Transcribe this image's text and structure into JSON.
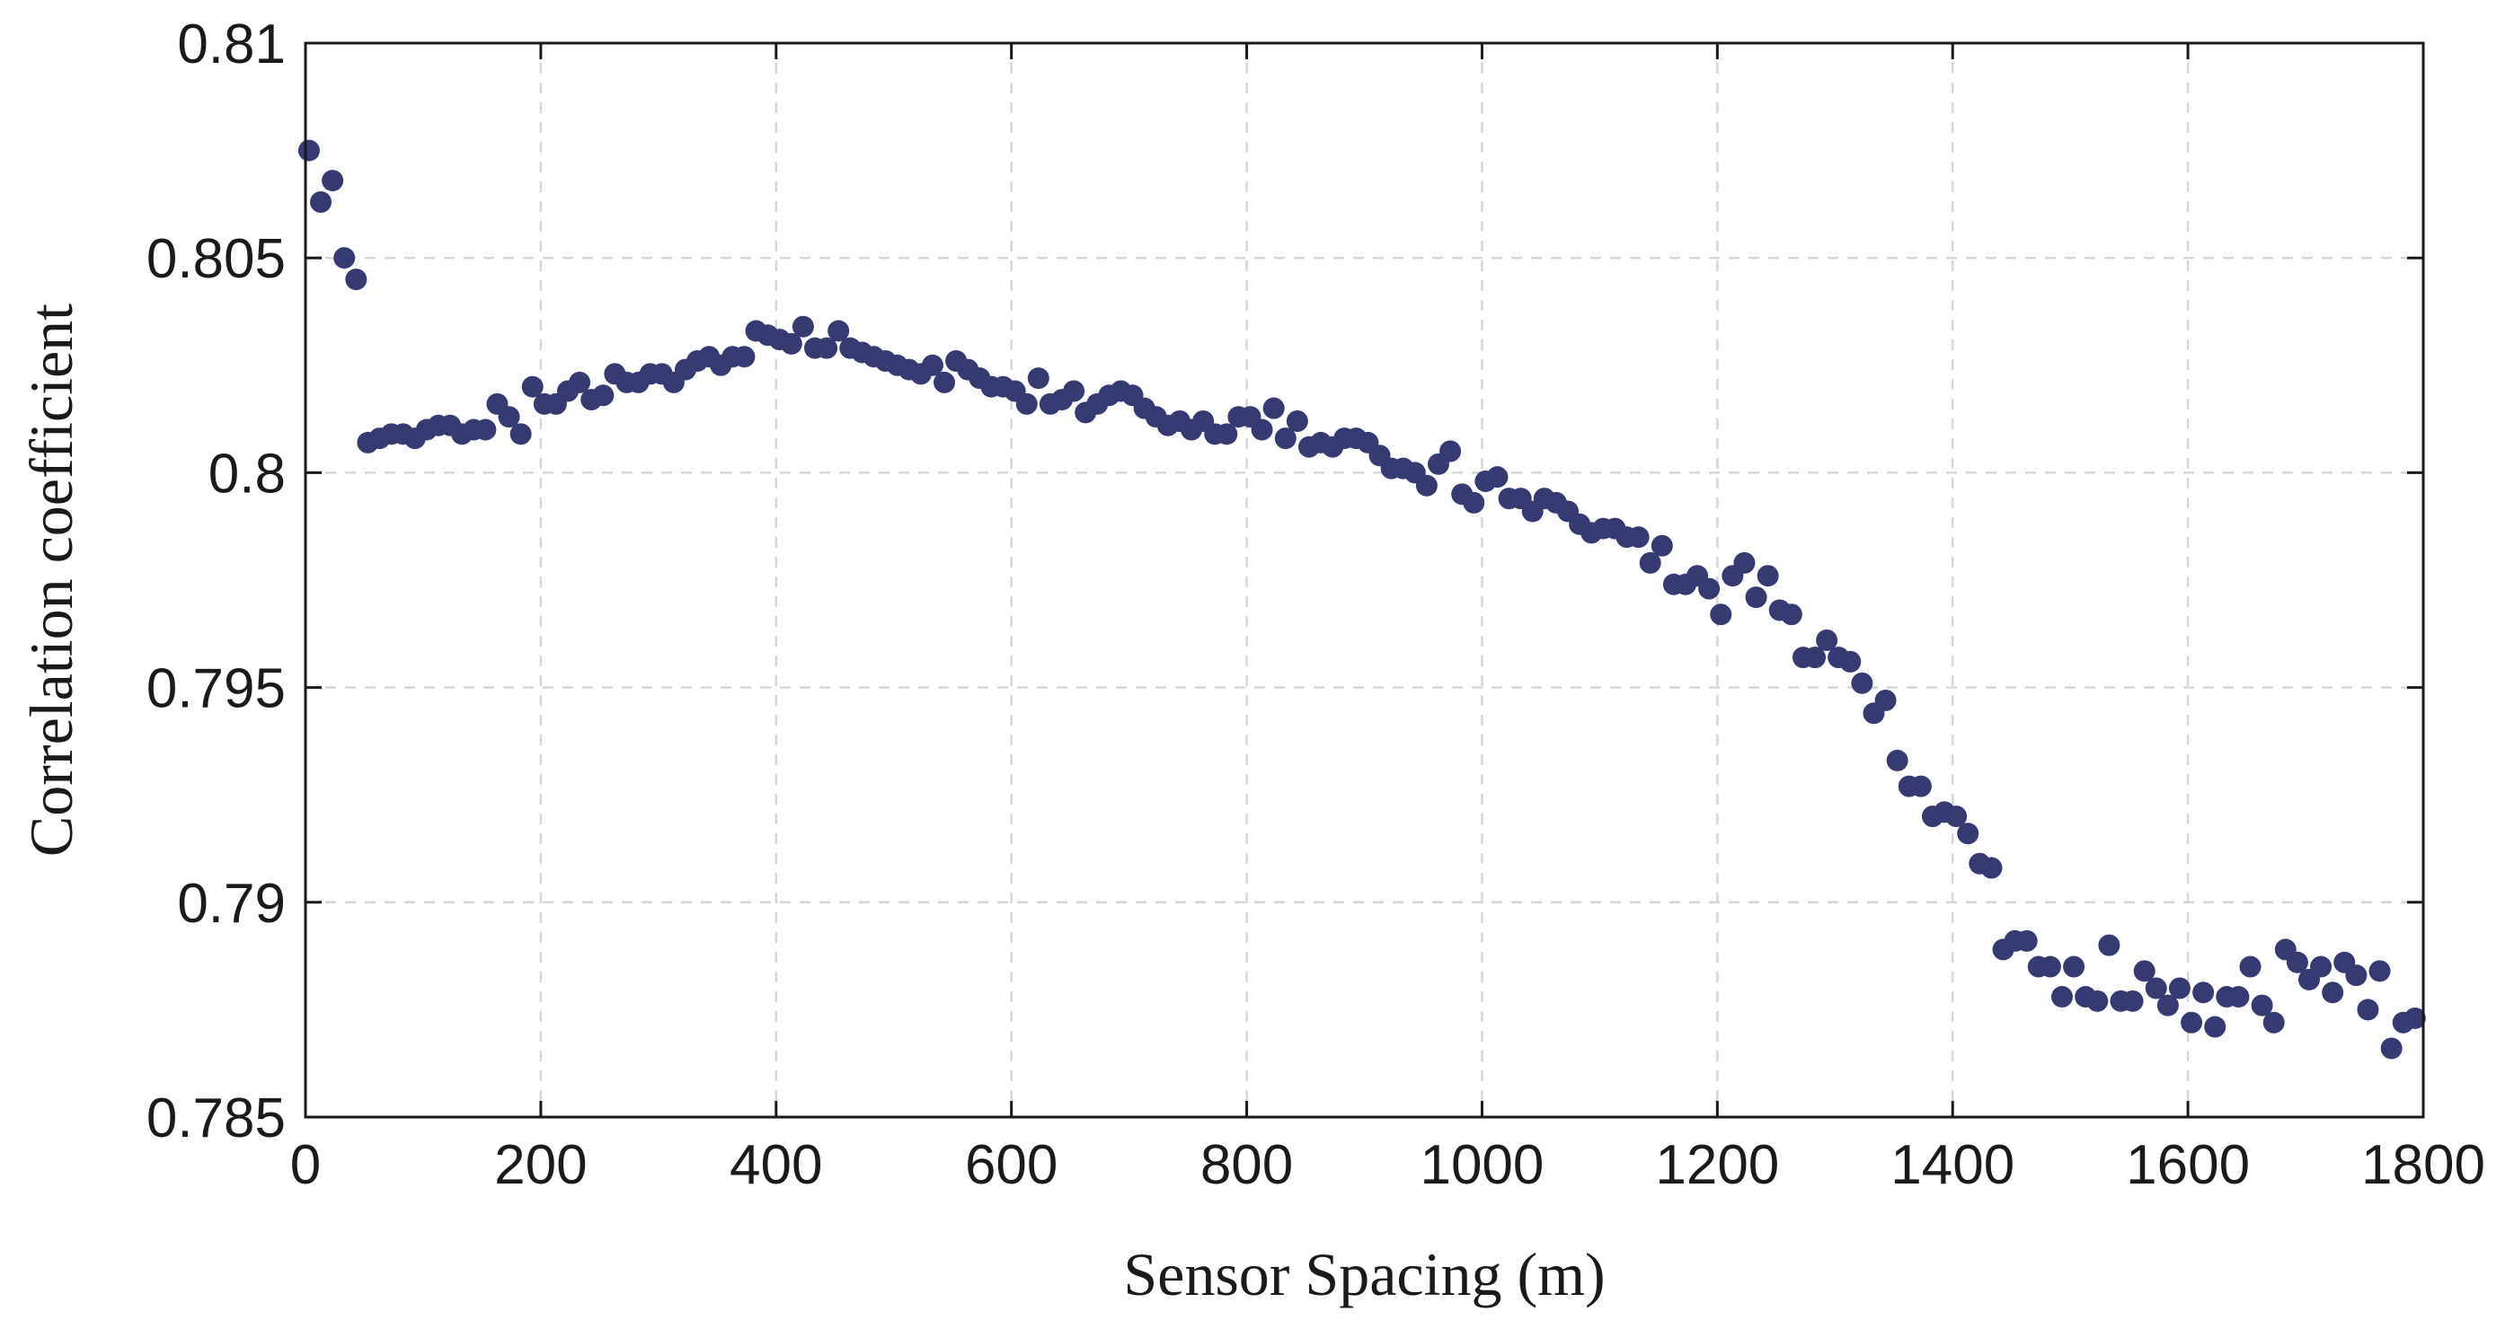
{
  "chart_data": {
    "type": "scatter",
    "title": "",
    "xlabel": "Sensor Spacing (m)",
    "ylabel": "Correlation coefficient",
    "xlim": [
      0,
      1800
    ],
    "ylim": [
      0.785,
      0.81
    ],
    "xticks": [
      0,
      200,
      400,
      600,
      800,
      1000,
      1200,
      1400,
      1600,
      1800
    ],
    "xtick_labels": [
      "0",
      "200",
      "400",
      "600",
      "800",
      "1000",
      "1200",
      "1400",
      "1600",
      "1800"
    ],
    "yticks": [
      0.785,
      0.79,
      0.795,
      0.8,
      0.805,
      0.81
    ],
    "ytick_labels": [
      "0.785",
      "0.79",
      "0.795",
      "0.8",
      "0.805",
      "0.81"
    ],
    "grid": true,
    "marker_color": "#353a72",
    "x": [
      3,
      13,
      23,
      33,
      43,
      53,
      63,
      73,
      83,
      93,
      103,
      113,
      123,
      133,
      143,
      153,
      163,
      173,
      183,
      193,
      203,
      213,
      223,
      233,
      243,
      253,
      263,
      273,
      283,
      293,
      303,
      313,
      323,
      333,
      343,
      353,
      363,
      373,
      383,
      393,
      403,
      413,
      423,
      433,
      443,
      453,
      463,
      473,
      483,
      493,
      503,
      513,
      523,
      533,
      543,
      553,
      563,
      573,
      583,
      593,
      603,
      613,
      623,
      633,
      643,
      653,
      663,
      673,
      683,
      693,
      703,
      713,
      723,
      733,
      743,
      753,
      763,
      773,
      783,
      793,
      803,
      813,
      823,
      833,
      843,
      853,
      863,
      873,
      883,
      893,
      903,
      913,
      923,
      933,
      943,
      953,
      963,
      973,
      983,
      993,
      1003,
      1013,
      1023,
      1033,
      1043,
      1053,
      1063,
      1073,
      1083,
      1093,
      1103,
      1113,
      1123,
      1133,
      1143,
      1153,
      1163,
      1173,
      1183,
      1193,
      1203,
      1213,
      1223,
      1233,
      1243,
      1253,
      1263,
      1273,
      1283,
      1293,
      1303,
      1313,
      1323,
      1333,
      1343,
      1353,
      1363,
      1373,
      1383,
      1393,
      1403,
      1413,
      1423,
      1433,
      1443,
      1453,
      1463,
      1473,
      1483,
      1493,
      1503,
      1513,
      1523,
      1533,
      1543,
      1553,
      1563,
      1573,
      1583,
      1593,
      1603,
      1613,
      1623,
      1633,
      1643,
      1653,
      1663,
      1673,
      1683,
      1693,
      1703,
      1713,
      1723,
      1733,
      1743,
      1753,
      1763,
      1773,
      1783,
      1793
    ],
    "y": [
      0.8075,
      0.8063,
      0.8068,
      0.805,
      0.8045,
      0.8007,
      0.8008,
      0.8009,
      0.8009,
      0.8008,
      0.801,
      0.8011,
      0.8011,
      0.8009,
      0.801,
      0.801,
      0.8016,
      0.8013,
      0.8009,
      0.802,
      0.8016,
      0.8016,
      0.8019,
      0.8021,
      0.8017,
      0.8018,
      0.8023,
      0.8021,
      0.8021,
      0.8023,
      0.8023,
      0.8021,
      0.8024,
      0.8026,
      0.8027,
      0.8025,
      0.8027,
      0.8027,
      0.8033,
      0.8032,
      0.8031,
      0.803,
      0.8034,
      0.8029,
      0.8029,
      0.8033,
      0.8029,
      0.8028,
      0.8027,
      0.8026,
      0.8025,
      0.8024,
      0.8023,
      0.8025,
      0.8021,
      0.8026,
      0.8024,
      0.8022,
      0.802,
      0.802,
      0.8019,
      0.8016,
      0.8022,
      0.8016,
      0.8017,
      0.8019,
      0.8014,
      0.8016,
      0.8018,
      0.8019,
      0.8018,
      0.8015,
      0.8013,
      0.8011,
      0.8012,
      0.801,
      0.8012,
      0.8009,
      0.8009,
      0.8013,
      0.8013,
      0.801,
      0.8015,
      0.8008,
      0.8012,
      0.8006,
      0.8007,
      0.8006,
      0.8008,
      0.8008,
      0.8007,
      0.8004,
      0.8001,
      0.8001,
      0.8,
      0.7997,
      0.8002,
      0.8005,
      0.7995,
      0.7993,
      0.7998,
      0.7999,
      0.7994,
      0.7994,
      0.7991,
      0.7994,
      0.7993,
      0.7991,
      0.7988,
      0.7986,
      0.7987,
      0.7987,
      0.7985,
      0.7985,
      0.7979,
      0.7983,
      0.7974,
      0.7974,
      0.7976,
      0.7973,
      0.7967,
      0.7976,
      0.7979,
      0.7971,
      0.7976,
      0.7968,
      0.7967,
      0.7957,
      0.7957,
      0.7961,
      0.7957,
      0.7956,
      0.7951,
      0.7944,
      0.7947,
      0.7933,
      0.7927,
      0.7927,
      0.792,
      0.7921,
      0.792,
      0.7916,
      0.7909,
      0.7908,
      0.7889,
      0.7891,
      0.7891,
      0.7885,
      0.7885,
      0.7878,
      0.7885,
      0.7878,
      0.7877,
      0.789,
      0.7877,
      0.7877,
      0.7884,
      0.788,
      0.7876,
      0.788,
      0.7872,
      0.7879,
      0.7871,
      0.7878,
      0.7878,
      0.7885,
      0.7876,
      0.7872,
      0.7889,
      0.7886,
      0.7882,
      0.7885,
      0.7879,
      0.7886,
      0.7883,
      0.7875,
      0.7884,
      0.7866,
      0.7872,
      0.7873
    ]
  }
}
